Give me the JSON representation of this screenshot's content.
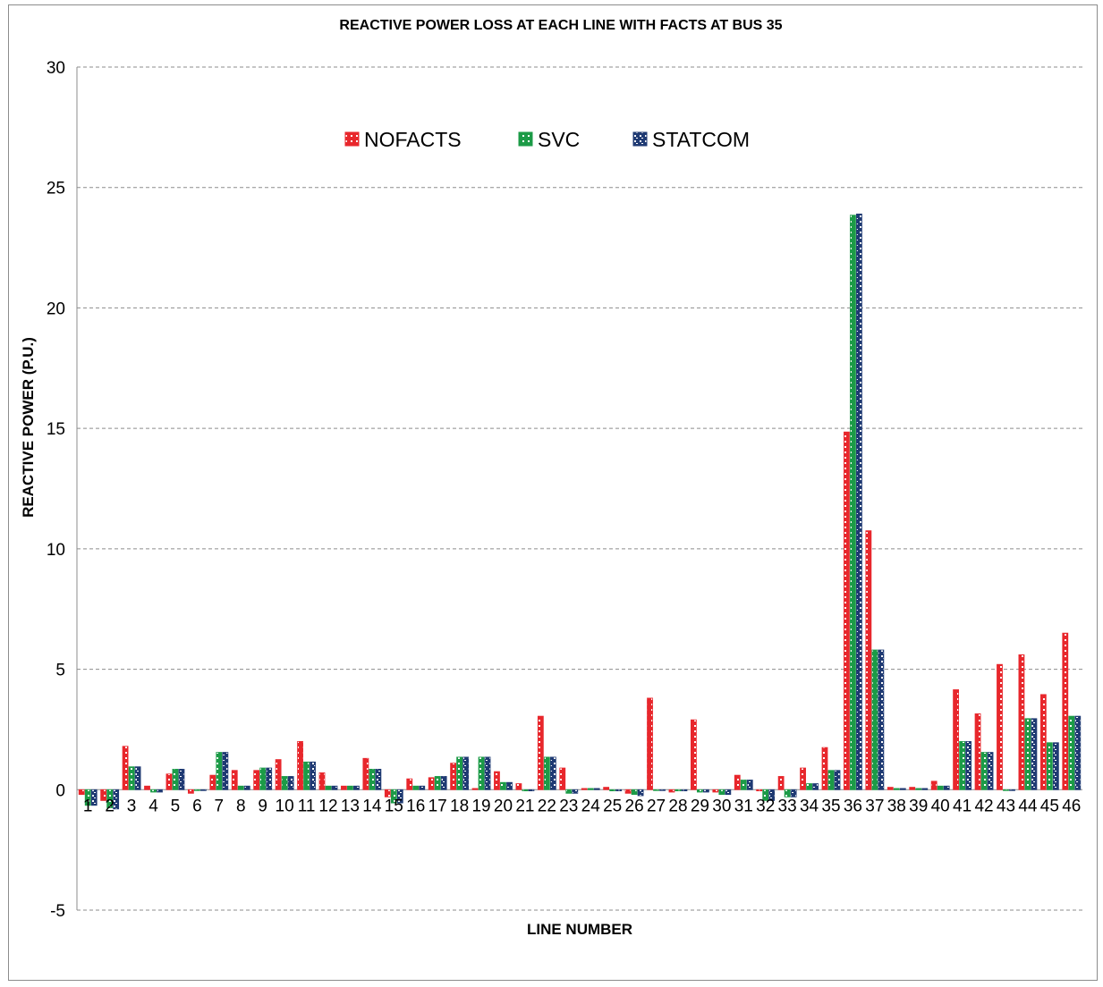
{
  "chart_data": {
    "type": "bar",
    "title": "REACTIVE POWER LOSS AT EACH LINE WITH FACTS AT BUS 35",
    "xlabel": "LINE NUMBER",
    "ylabel": "REACTIVE POWER (P.U.)",
    "ylim": [
      -5,
      30
    ],
    "yticks": [
      -5,
      0,
      5,
      10,
      15,
      20,
      25,
      30
    ],
    "grid": true,
    "legend_position": "top-center",
    "categories": [
      "1",
      "2",
      "3",
      "4",
      "5",
      "6",
      "7",
      "8",
      "9",
      "10",
      "11",
      "12",
      "13",
      "14",
      "15",
      "16",
      "17",
      "18",
      "19",
      "20",
      "21",
      "22",
      "23",
      "24",
      "25",
      "26",
      "27",
      "28",
      "29",
      "30",
      "31",
      "32",
      "33",
      "34",
      "35",
      "36",
      "37",
      "38",
      "39",
      "40",
      "41",
      "42",
      "43",
      "44",
      "45",
      "46"
    ],
    "series": [
      {
        "name": "NOFACTS",
        "color": "#e8272c",
        "values": [
          -0.2,
          -0.45,
          1.8,
          0.15,
          0.65,
          -0.15,
          0.6,
          0.8,
          0.8,
          1.25,
          2.0,
          0.7,
          0.15,
          1.3,
          -0.3,
          0.45,
          0.5,
          1.1,
          0.05,
          0.75,
          0.25,
          3.05,
          0.9,
          0.05,
          0.1,
          -0.15,
          3.8,
          -0.1,
          2.9,
          -0.1,
          0.6,
          -0.05,
          0.55,
          0.9,
          1.75,
          14.85,
          10.75,
          0.1,
          0.1,
          0.35,
          4.15,
          3.15,
          5.2,
          5.6,
          3.95,
          6.5
        ]
      },
      {
        "name": "SVC",
        "color": "#1c9b47",
        "values": [
          -0.65,
          -0.75,
          0.95,
          -0.1,
          0.85,
          0.0,
          1.55,
          0.15,
          0.9,
          0.55,
          1.15,
          0.15,
          0.15,
          0.85,
          -0.55,
          0.15,
          0.55,
          1.35,
          1.35,
          0.3,
          -0.05,
          1.35,
          -0.15,
          0.05,
          -0.05,
          -0.2,
          0.0,
          -0.05,
          -0.1,
          -0.2,
          0.4,
          -0.45,
          -0.3,
          0.25,
          0.8,
          23.85,
          5.8,
          0.05,
          0.05,
          0.15,
          2.0,
          1.55,
          0.0,
          2.95,
          1.95,
          3.05
        ]
      },
      {
        "name": "STATCOM",
        "color": "#1f3a73",
        "values": [
          -0.65,
          -0.8,
          0.95,
          -0.1,
          0.85,
          0.0,
          1.55,
          0.15,
          0.9,
          0.55,
          1.15,
          0.15,
          0.15,
          0.85,
          -0.55,
          0.15,
          0.55,
          1.35,
          1.35,
          0.3,
          -0.05,
          1.35,
          -0.15,
          0.05,
          -0.05,
          -0.25,
          0.0,
          -0.05,
          -0.1,
          -0.2,
          0.4,
          -0.45,
          -0.3,
          0.25,
          0.8,
          23.9,
          5.8,
          0.05,
          0.05,
          0.15,
          2.0,
          1.55,
          0.0,
          2.95,
          1.95,
          3.05
        ]
      }
    ]
  }
}
